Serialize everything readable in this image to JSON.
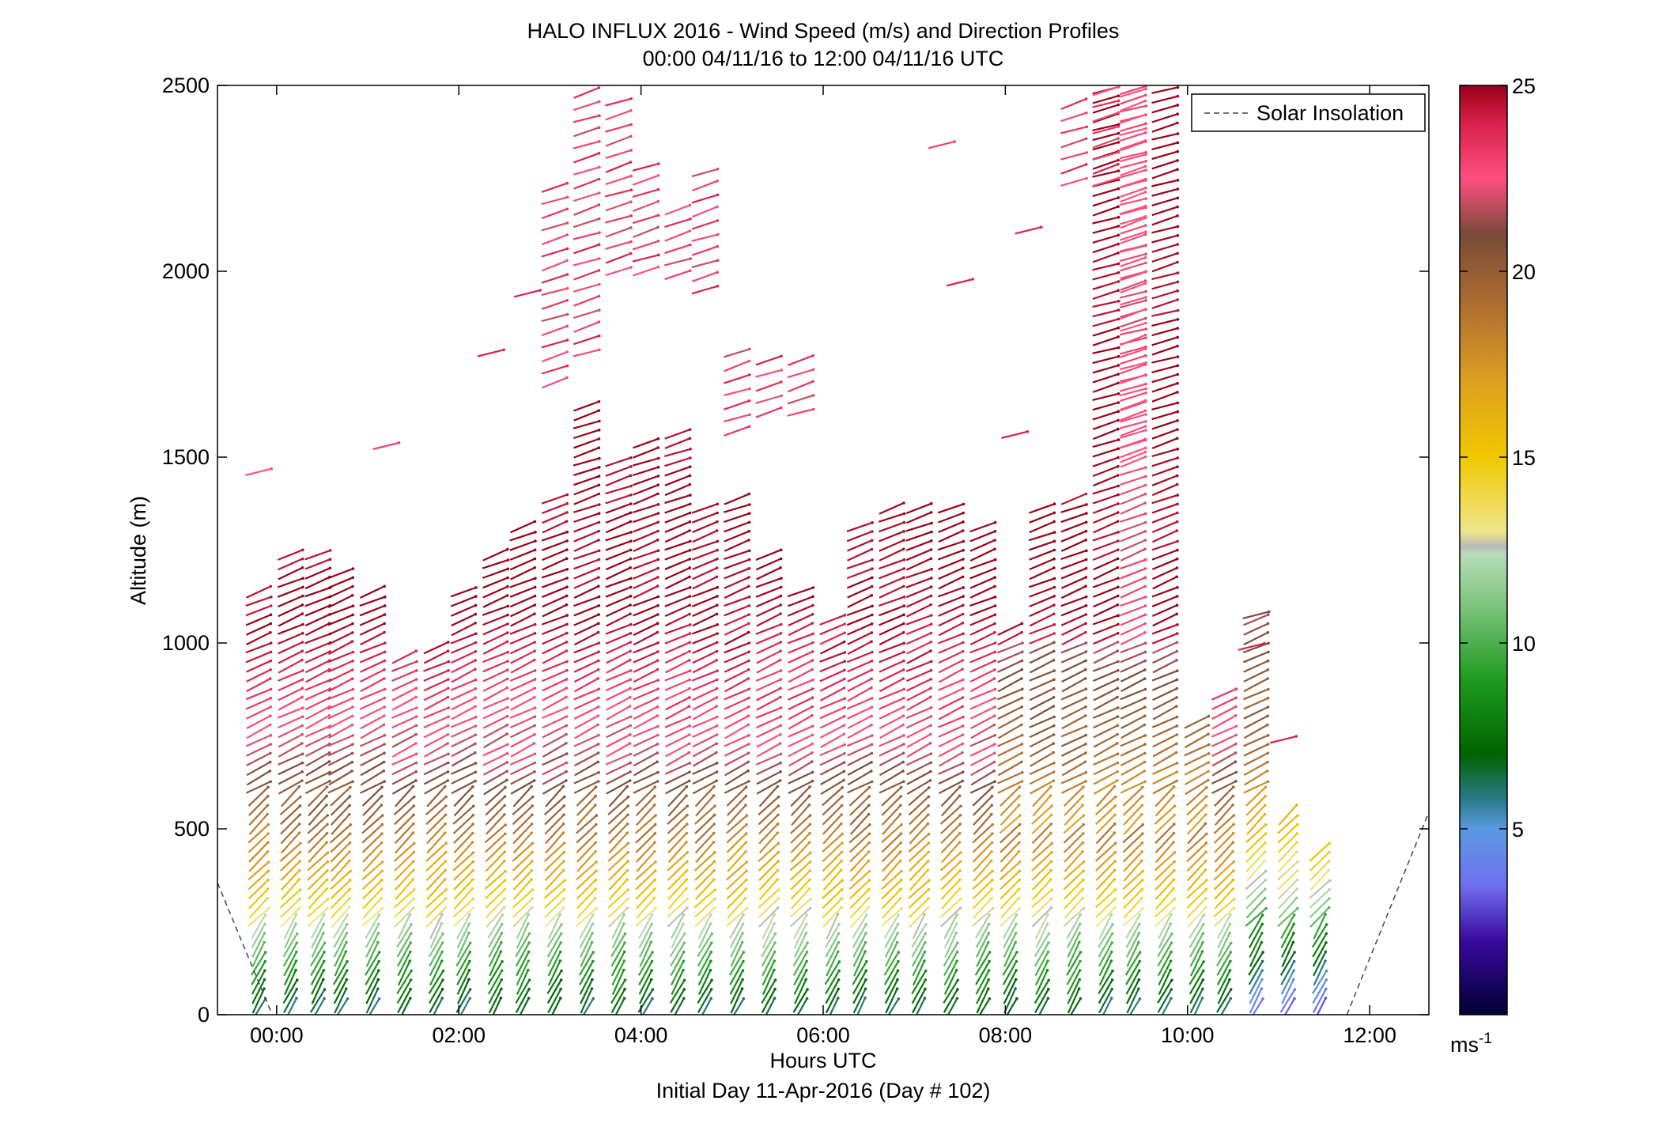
{
  "chart_data": {
    "type": "wind-barb-profile",
    "title": "HALO INFLUX 2016 - Wind Speed (m/s) and Direction Profiles",
    "subtitle": "00:00 04/11/16 to 12:00 04/11/16  UTC",
    "xlabel": "Hours UTC",
    "xlabel2": "Initial Day 11-Apr-2016 (Day # 102)",
    "ylabel": "Altitude (m)",
    "xlim": [
      -0.65,
      12.65
    ],
    "ylim": [
      0,
      2500
    ],
    "x_ticks": [
      {
        "value": 0,
        "label": "00:00"
      },
      {
        "value": 2,
        "label": "02:00"
      },
      {
        "value": 4,
        "label": "04:00"
      },
      {
        "value": 6,
        "label": "06:00"
      },
      {
        "value": 8,
        "label": "08:00"
      },
      {
        "value": 10,
        "label": "10:00"
      },
      {
        "value": 12,
        "label": "12:00"
      }
    ],
    "y_ticks": [
      {
        "value": 0,
        "label": "0"
      },
      {
        "value": 500,
        "label": "500"
      },
      {
        "value": 1000,
        "label": "1000"
      },
      {
        "value": 1500,
        "label": "1500"
      },
      {
        "value": 2000,
        "label": "2000"
      },
      {
        "value": 2500,
        "label": "2500"
      }
    ],
    "colorbar": {
      "min": 0,
      "max": 25,
      "ticks": [
        {
          "value": 5,
          "label": "5"
        },
        {
          "value": 10,
          "label": "10"
        },
        {
          "value": 15,
          "label": "15"
        },
        {
          "value": 20,
          "label": "20"
        },
        {
          "value": 25,
          "label": "25"
        }
      ],
      "unit_base": "ms",
      "unit_exp": "-1",
      "stops": [
        {
          "v": 0,
          "c": "#000033"
        },
        {
          "v": 2,
          "c": "#3a0aa0"
        },
        {
          "v": 3.5,
          "c": "#7070f0"
        },
        {
          "v": 5,
          "c": "#5a9ae0"
        },
        {
          "v": 5.8,
          "c": "#2a7a88"
        },
        {
          "v": 7,
          "c": "#006400"
        },
        {
          "v": 9,
          "c": "#1f9a1f"
        },
        {
          "v": 11,
          "c": "#7dc47d"
        },
        {
          "v": 12.4,
          "c": "#b8dcb8"
        },
        {
          "v": 12.6,
          "c": "#b8b8b8"
        },
        {
          "v": 13,
          "c": "#f0e68c"
        },
        {
          "v": 15,
          "c": "#f0c800"
        },
        {
          "v": 17,
          "c": "#e0a020"
        },
        {
          "v": 19,
          "c": "#b07030"
        },
        {
          "v": 21,
          "c": "#7a4a3a"
        },
        {
          "v": 22.5,
          "c": "#ff4f80"
        },
        {
          "v": 24,
          "c": "#d8204a"
        },
        {
          "v": 25,
          "c": "#9a0018"
        }
      ]
    },
    "legend": {
      "label": "Solar Insolation",
      "placement": "top-right"
    },
    "solar_insolation": {
      "morning": [
        {
          "x": -0.65,
          "y": 355
        },
        {
          "x": -0.05,
          "y": 0
        }
      ],
      "evening": [
        {
          "x": 11.75,
          "y": 0
        },
        {
          "x": 12.65,
          "y": 545
        }
      ]
    },
    "profile_times": [
      -0.2,
      0.15,
      0.45,
      0.7,
      1.05,
      1.4,
      1.75,
      2.05,
      2.4,
      2.7,
      3.05,
      3.4,
      3.75,
      4.05,
      4.4,
      4.7,
      5.05,
      5.4,
      5.75,
      6.1,
      6.4,
      6.75,
      7.05,
      7.4,
      7.75,
      8.05,
      8.4,
      8.75,
      9.1,
      9.4,
      9.75,
      10.1,
      10.4,
      10.75,
      11.1,
      11.45
    ],
    "profile_tops": [
      1160,
      1240,
      1240,
      1200,
      1160,
      980,
      1000,
      1160,
      1240,
      1320,
      1400,
      1660,
      1500,
      1540,
      1580,
      1370,
      1410,
      1240,
      1160,
      1080,
      1330,
      1370,
      1380,
      1370,
      1330,
      1060,
      1370,
      1410,
      2500,
      2500,
      2500,
      800,
      880,
      1080,
      560,
      460
    ],
    "profile_bottoms": [
      0,
      0,
      0,
      0,
      0,
      0,
      0,
      0,
      0,
      0,
      0,
      0,
      0,
      0,
      0,
      0,
      0,
      0,
      0,
      0,
      0,
      0,
      0,
      0,
      0,
      0,
      0,
      0,
      0,
      0,
      0,
      0,
      0,
      0,
      0,
      0
    ],
    "upper_segments": [
      {
        "t": 3.05,
        "z0": 1700,
        "z1": 2240
      },
      {
        "t": 3.4,
        "z0": 1780,
        "z1": 2500
      },
      {
        "t": 3.75,
        "z0": 2000,
        "z1": 2460
      },
      {
        "t": 4.05,
        "z0": 2000,
        "z1": 2280
      },
      {
        "t": 4.4,
        "z0": 1990,
        "z1": 2180
      },
      {
        "t": 4.7,
        "z0": 1950,
        "z1": 2270
      },
      {
        "t": 5.05,
        "z0": 1570,
        "z1": 1780
      },
      {
        "t": 5.4,
        "z0": 1620,
        "z1": 1790
      },
      {
        "t": 5.75,
        "z0": 1620,
        "z1": 1790
      },
      {
        "t": 8.75,
        "z0": 2240,
        "z1": 2470
      },
      {
        "t": 9.1,
        "z0": 2240,
        "z1": 2490
      },
      {
        "t": 9.4,
        "z0": 1500,
        "z1": 2500
      }
    ],
    "isolated_barbs": [
      {
        "t": -0.2,
        "z": 1460,
        "speed": 22.5
      },
      {
        "t": 1.2,
        "z": 1530,
        "speed": 23
      },
      {
        "t": 2.35,
        "z": 1780,
        "speed": 24
      },
      {
        "t": 2.75,
        "z": 1940,
        "speed": 24
      },
      {
        "t": 7.3,
        "z": 2340,
        "speed": 23
      },
      {
        "t": 7.5,
        "z": 1970,
        "speed": 24
      },
      {
        "t": 8.25,
        "z": 2110,
        "speed": 24
      },
      {
        "t": 8.1,
        "z": 1560,
        "speed": 24
      },
      {
        "t": 10.7,
        "z": 990,
        "speed": 24
      },
      {
        "t": 10.75,
        "z": 1075,
        "speed": 21
      },
      {
        "t": 11.05,
        "z": 740,
        "speed": 24
      }
    ]
  }
}
